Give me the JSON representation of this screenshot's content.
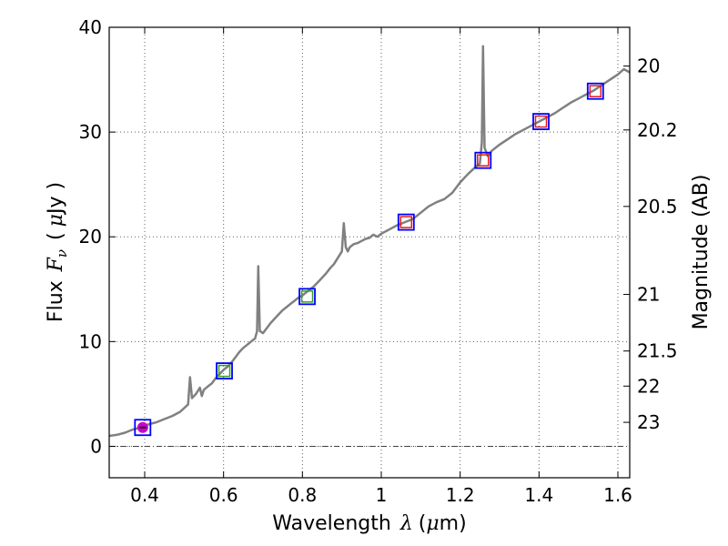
{
  "chart_data": {
    "type": "line",
    "title": "",
    "xlabel": {
      "prefix": "Wavelength",
      "symbol": "λ",
      "unit_open": "(",
      "unit_mu": "μ",
      "unit_rest": "m)"
    },
    "ylabel": {
      "prefix": "Flux",
      "symbol": "F",
      "subscript": "ν",
      "unit_open": "(",
      "unit_mu": "μ",
      "unit_rest": "Jy )"
    },
    "ylabel_right": "Magnitude (AB)",
    "xlim": [
      0.31,
      1.63
    ],
    "ylim": [
      -3,
      40
    ],
    "grid": true,
    "x_ticks": [
      {
        "value": 0.4,
        "label": "0.4"
      },
      {
        "value": 0.6,
        "label": "0.6"
      },
      {
        "value": 0.8,
        "label": "0.8"
      },
      {
        "value": 1.0,
        "label": "1"
      },
      {
        "value": 1.2,
        "label": "1.2"
      },
      {
        "value": 1.4,
        "label": "1.4"
      },
      {
        "value": 1.6,
        "label": "1.6"
      }
    ],
    "y_ticks": [
      {
        "value": 0,
        "label": "0"
      },
      {
        "value": 10,
        "label": "10"
      },
      {
        "value": 20,
        "label": "20"
      },
      {
        "value": 30,
        "label": "30"
      },
      {
        "value": 40,
        "label": "40"
      }
    ],
    "mag_ticks": [
      {
        "flux": 36.3,
        "label": "20"
      },
      {
        "flux": 30.2,
        "label": "20.2"
      },
      {
        "flux": 22.9,
        "label": "20.5"
      },
      {
        "flux": 14.5,
        "label": "21"
      },
      {
        "flux": 9.1,
        "label": "21.5"
      },
      {
        "flux": 5.75,
        "label": "22"
      },
      {
        "flux": 2.29,
        "label": "23"
      }
    ],
    "zero_line": 0,
    "series": [
      {
        "name": "spectrum",
        "color": "#808080",
        "points": [
          [
            0.31,
            1.0
          ],
          [
            0.33,
            1.1
          ],
          [
            0.35,
            1.3
          ],
          [
            0.37,
            1.6
          ],
          [
            0.39,
            1.8
          ],
          [
            0.41,
            2.1
          ],
          [
            0.43,
            2.3
          ],
          [
            0.45,
            2.6
          ],
          [
            0.47,
            2.9
          ],
          [
            0.49,
            3.3
          ],
          [
            0.51,
            4.0
          ],
          [
            0.515,
            6.6
          ],
          [
            0.52,
            4.6
          ],
          [
            0.53,
            5.0
          ],
          [
            0.54,
            5.6
          ],
          [
            0.545,
            4.8
          ],
          [
            0.55,
            5.4
          ],
          [
            0.56,
            5.7
          ],
          [
            0.57,
            6.0
          ],
          [
            0.58,
            6.5
          ],
          [
            0.59,
            6.9
          ],
          [
            0.6,
            7.3
          ],
          [
            0.61,
            7.6
          ],
          [
            0.62,
            8.0
          ],
          [
            0.63,
            8.5
          ],
          [
            0.64,
            9.0
          ],
          [
            0.65,
            9.4
          ],
          [
            0.66,
            9.7
          ],
          [
            0.67,
            10.0
          ],
          [
            0.68,
            10.3
          ],
          [
            0.685,
            11.0
          ],
          [
            0.688,
            17.2
          ],
          [
            0.692,
            11.0
          ],
          [
            0.7,
            10.8
          ],
          [
            0.71,
            11.3
          ],
          [
            0.72,
            11.8
          ],
          [
            0.73,
            12.2
          ],
          [
            0.74,
            12.6
          ],
          [
            0.75,
            13.0
          ],
          [
            0.76,
            13.3
          ],
          [
            0.77,
            13.6
          ],
          [
            0.78,
            13.9
          ],
          [
            0.79,
            14.2
          ],
          [
            0.8,
            14.4
          ],
          [
            0.81,
            14.7
          ],
          [
            0.82,
            15.0
          ],
          [
            0.83,
            15.3
          ],
          [
            0.84,
            15.7
          ],
          [
            0.85,
            16.1
          ],
          [
            0.86,
            16.5
          ],
          [
            0.87,
            17.0
          ],
          [
            0.88,
            17.4
          ],
          [
            0.89,
            18.0
          ],
          [
            0.9,
            18.6
          ],
          [
            0.905,
            21.3
          ],
          [
            0.91,
            19.0
          ],
          [
            0.915,
            18.6
          ],
          [
            0.92,
            19.0
          ],
          [
            0.93,
            19.3
          ],
          [
            0.94,
            19.4
          ],
          [
            0.95,
            19.6
          ],
          [
            0.96,
            19.8
          ],
          [
            0.97,
            19.9
          ],
          [
            0.98,
            20.2
          ],
          [
            0.99,
            20.0
          ],
          [
            1.0,
            20.3
          ],
          [
            1.02,
            20.7
          ],
          [
            1.04,
            21.1
          ],
          [
            1.06,
            21.4
          ],
          [
            1.08,
            21.7
          ],
          [
            1.1,
            22.3
          ],
          [
            1.12,
            22.9
          ],
          [
            1.14,
            23.3
          ],
          [
            1.16,
            23.6
          ],
          [
            1.18,
            24.2
          ],
          [
            1.2,
            25.2
          ],
          [
            1.22,
            26.0
          ],
          [
            1.24,
            26.7
          ],
          [
            1.25,
            27.0
          ],
          [
            1.255,
            29.0
          ],
          [
            1.258,
            38.2
          ],
          [
            1.262,
            28.5
          ],
          [
            1.27,
            27.7
          ],
          [
            1.28,
            28.2
          ],
          [
            1.3,
            28.8
          ],
          [
            1.32,
            29.3
          ],
          [
            1.34,
            29.8
          ],
          [
            1.36,
            30.2
          ],
          [
            1.38,
            30.6
          ],
          [
            1.4,
            31.0
          ],
          [
            1.42,
            31.4
          ],
          [
            1.44,
            31.8
          ],
          [
            1.46,
            32.3
          ],
          [
            1.48,
            32.8
          ],
          [
            1.5,
            33.2
          ],
          [
            1.52,
            33.6
          ],
          [
            1.54,
            34.0
          ],
          [
            1.56,
            34.5
          ],
          [
            1.58,
            35.0
          ],
          [
            1.6,
            35.5
          ],
          [
            1.615,
            36.0
          ],
          [
            1.63,
            35.7
          ]
        ]
      }
    ],
    "photometry": [
      {
        "x": 0.395,
        "y": 1.8,
        "model_color": "#cc00cc",
        "filled": true
      },
      {
        "x": 0.602,
        "y": 7.2,
        "model_color": "#33a02c",
        "filled": false
      },
      {
        "x": 0.812,
        "y": 14.3,
        "model_color": "#33a02c",
        "filled": false
      },
      {
        "x": 1.063,
        "y": 21.4,
        "model_color": "#e31a1c",
        "filled": false
      },
      {
        "x": 1.258,
        "y": 27.3,
        "model_color": "#e31a1c",
        "filled": false
      },
      {
        "x": 1.405,
        "y": 31.0,
        "model_color": "#e31a1c",
        "filled": false
      },
      {
        "x": 1.543,
        "y": 33.9,
        "model_color": "#e31a1c",
        "filled": false
      }
    ],
    "colors": {
      "frame": "#000000",
      "grid": "#606060",
      "observed_box": "#0000ff"
    }
  }
}
